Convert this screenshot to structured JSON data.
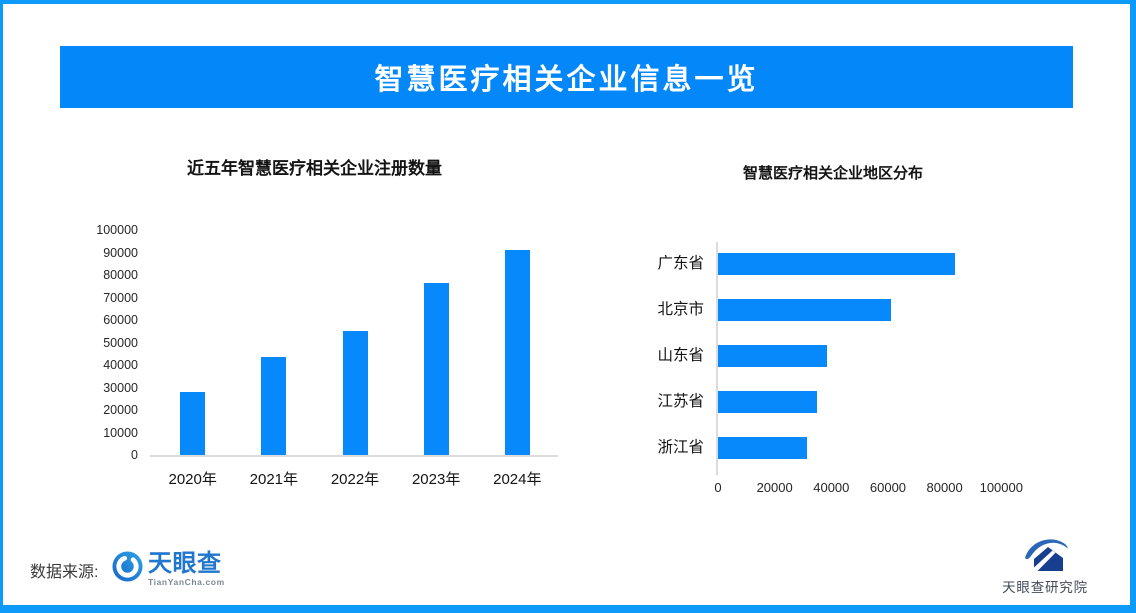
{
  "banner": {
    "title": "智慧医疗相关企业信息一览"
  },
  "chart_data": [
    {
      "type": "bar",
      "orientation": "vertical",
      "title": "近五年智慧医疗相关企业注册数量",
      "categories": [
        "2020年",
        "2021年",
        "2022年",
        "2023年",
        "2024年"
      ],
      "values": [
        28000,
        43500,
        55000,
        76500,
        91000
      ],
      "xlabel": "",
      "ylabel": "",
      "ylim": [
        0,
        100000
      ],
      "yticks": [
        0,
        10000,
        20000,
        30000,
        40000,
        50000,
        60000,
        70000,
        80000,
        90000,
        100000
      ],
      "grid": false,
      "legend": "none"
    },
    {
      "type": "bar",
      "orientation": "horizontal",
      "title": "智慧医疗相关企业地区分布",
      "categories": [
        "广东省",
        "北京市",
        "山东省",
        "江苏省",
        "浙江省"
      ],
      "values": [
        83500,
        61000,
        38500,
        35000,
        31500
      ],
      "xlabel": "",
      "ylabel": "",
      "xlim": [
        0,
        100000
      ],
      "xticks": [
        0,
        20000,
        40000,
        60000,
        80000,
        100000
      ],
      "grid": false,
      "legend": "none"
    }
  ],
  "footer": {
    "source_label": "数据来源:",
    "tianyancha": {
      "name": "天眼查",
      "domain": "TianYanCha.com"
    },
    "institute": {
      "name": "天眼查研究院"
    }
  },
  "colors": {
    "banner_bg": "#0487F9",
    "frame_border": "#0D9AF8",
    "bar": "#0788FB",
    "axis_line": "#DCDCDC",
    "tyc_blue": "#2176CE",
    "institute_navy": "#173E8F"
  }
}
